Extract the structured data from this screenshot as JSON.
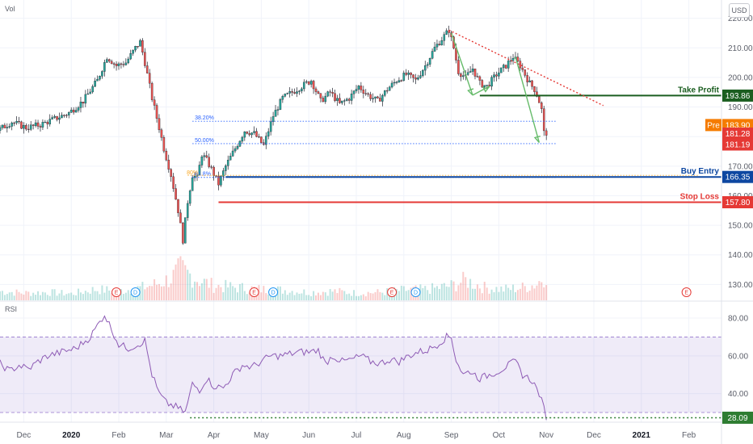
{
  "header": {
    "volume_label": "Vol",
    "currency": "USD"
  },
  "rsi_panel": {
    "label": "RSI",
    "upper_band": 70,
    "lower_band": 30,
    "current_value": "28.09",
    "value_color": "#2e7d32"
  },
  "chart_data": [
    {
      "type": "candlestick",
      "y_axis_ticks": [
        "220.00",
        "210.00",
        "200.00",
        "190.00",
        "180.00",
        "170.00",
        "160.00",
        "150.00",
        "140.00",
        "130.00"
      ],
      "ylim": [
        126,
        221
      ],
      "x_axis_labels": [
        {
          "label": "Dec",
          "t": 0.5,
          "bold": false
        },
        {
          "label": "2020",
          "t": 1.5,
          "bold": true
        },
        {
          "label": "Feb",
          "t": 2.5,
          "bold": false
        },
        {
          "label": "Mar",
          "t": 3.5,
          "bold": false
        },
        {
          "label": "Apr",
          "t": 4.5,
          "bold": false
        },
        {
          "label": "May",
          "t": 5.5,
          "bold": false
        },
        {
          "label": "Jun",
          "t": 6.5,
          "bold": false
        },
        {
          "label": "Jul",
          "t": 7.5,
          "bold": false
        },
        {
          "label": "Aug",
          "t": 8.5,
          "bold": false
        },
        {
          "label": "Sep",
          "t": 9.5,
          "bold": false
        },
        {
          "label": "Oct",
          "t": 10.5,
          "bold": false
        },
        {
          "label": "Nov",
          "t": 11.5,
          "bold": false
        },
        {
          "label": "Dec",
          "t": 12.5,
          "bold": false
        },
        {
          "label": "2021",
          "t": 13.5,
          "bold": true
        },
        {
          "label": "Feb",
          "t": 14.5,
          "bold": false
        }
      ],
      "price_path": [
        [
          0.0,
          182
        ],
        [
          0.3,
          185
        ],
        [
          0.6,
          183
        ],
        [
          0.9,
          184
        ],
        [
          1.2,
          186
        ],
        [
          1.5,
          188
        ],
        [
          1.8,
          192
        ],
        [
          2.1,
          199
        ],
        [
          2.3,
          207
        ],
        [
          2.5,
          204
        ],
        [
          2.7,
          205
        ],
        [
          2.9,
          210
        ],
        [
          3.0,
          212
        ],
        [
          3.1,
          205
        ],
        [
          3.25,
          193
        ],
        [
          3.4,
          183
        ],
        [
          3.5,
          176
        ],
        [
          3.65,
          167
        ],
        [
          3.8,
          155
        ],
        [
          3.9,
          145
        ],
        [
          4.0,
          158
        ],
        [
          4.1,
          167
        ],
        [
          4.2,
          166
        ],
        [
          4.3,
          174
        ],
        [
          4.4,
          172
        ],
        [
          4.5,
          169
        ],
        [
          4.65,
          164
        ],
        [
          4.8,
          170
        ],
        [
          5.0,
          176
        ],
        [
          5.2,
          182
        ],
        [
          5.4,
          181
        ],
        [
          5.6,
          177
        ],
        [
          5.8,
          187
        ],
        [
          6.0,
          193
        ],
        [
          6.2,
          195
        ],
        [
          6.4,
          197
        ],
        [
          6.6,
          199
        ],
        [
          6.8,
          192
        ],
        [
          7.0,
          195
        ],
        [
          7.2,
          191
        ],
        [
          7.4,
          193
        ],
        [
          7.6,
          197
        ],
        [
          7.8,
          194
        ],
        [
          8.0,
          192
        ],
        [
          8.2,
          196
        ],
        [
          8.4,
          199
        ],
        [
          8.6,
          201
        ],
        [
          8.8,
          199
        ],
        [
          9.0,
          204
        ],
        [
          9.2,
          210
        ],
        [
          9.4,
          214
        ],
        [
          9.5,
          216
        ],
        [
          9.6,
          210
        ],
        [
          9.7,
          202
        ],
        [
          9.85,
          200
        ],
        [
          10.0,
          203
        ],
        [
          10.15,
          198
        ],
        [
          10.3,
          197
        ],
        [
          10.5,
          201
        ],
        [
          10.7,
          204
        ],
        [
          10.85,
          207
        ],
        [
          11.0,
          204
        ],
        [
          11.1,
          201
        ],
        [
          11.2,
          198
        ],
        [
          11.3,
          196
        ],
        [
          11.38,
          193
        ],
        [
          11.45,
          189
        ],
        [
          11.5,
          181.3
        ]
      ],
      "volume": [
        [
          0.0,
          0.25
        ],
        [
          0.5,
          0.2
        ],
        [
          1.0,
          0.22
        ],
        [
          1.5,
          0.18
        ],
        [
          2.0,
          0.3
        ],
        [
          2.5,
          0.26
        ],
        [
          3.0,
          0.35
        ],
        [
          3.3,
          0.45
        ],
        [
          3.6,
          0.6
        ],
        [
          3.8,
          0.85
        ],
        [
          4.0,
          0.7
        ],
        [
          4.2,
          0.55
        ],
        [
          4.5,
          0.4
        ],
        [
          5.0,
          0.35
        ],
        [
          5.5,
          0.3
        ],
        [
          6.0,
          0.28
        ],
        [
          6.5,
          0.22
        ],
        [
          7.0,
          0.25
        ],
        [
          7.5,
          0.2
        ],
        [
          8.0,
          0.22
        ],
        [
          8.5,
          0.28
        ],
        [
          9.0,
          0.3
        ],
        [
          9.5,
          0.4
        ],
        [
          9.8,
          0.55
        ],
        [
          10.2,
          0.35
        ],
        [
          10.6,
          0.3
        ],
        [
          11.0,
          0.35
        ],
        [
          11.3,
          0.45
        ],
        [
          11.5,
          0.75
        ]
      ],
      "events": [
        {
          "label": "E",
          "t": 2.45,
          "color": "#e53935"
        },
        {
          "label": "D",
          "t": 2.85,
          "color": "#2196f3"
        },
        {
          "label": "E",
          "t": 5.35,
          "color": "#e53935"
        },
        {
          "label": "D",
          "t": 5.75,
          "color": "#2196f3"
        },
        {
          "label": "E",
          "t": 8.25,
          "color": "#e53935"
        },
        {
          "label": "D",
          "t": 8.75,
          "color": "#2196f3"
        },
        {
          "label": "E",
          "t": 14.45,
          "color": "#e53935"
        }
      ],
      "fib_levels": [
        {
          "label": "38.20%",
          "value": 185.2
        },
        {
          "label": "50.00%",
          "value": 177.6
        },
        {
          "label": "61.8%",
          "value": 166.2
        }
      ],
      "orange_level": {
        "label": "80%",
        "value": 166.9
      },
      "levels": [
        {
          "label": "Take Profit",
          "value": 193.86,
          "badge": "193.86",
          "color": "#1b5e20",
          "t_start": 10.1
        },
        {
          "label": "Buy Entry",
          "value": 166.35,
          "badge": "166.35",
          "color": "#0d47a1",
          "t_start": 4.75
        },
        {
          "label": "Stop Loss",
          "value": 157.8,
          "badge": "157.80",
          "color": "#e53935",
          "t_start": 4.6
        }
      ],
      "price_badges": [
        {
          "label": "183.90",
          "value": 183.9,
          "color": "#f57c00",
          "prefix": "Pre"
        },
        {
          "label": "181.28",
          "value": 181.28,
          "color": "#e53935",
          "prefix": ""
        },
        {
          "label": "181.19",
          "value": 181.19,
          "color": "#e53935",
          "prefix": ""
        }
      ],
      "trendline": {
        "t1": 9.45,
        "v1": 216,
        "t2": 12.7,
        "v2": 190.5,
        "color": "#e53935"
      },
      "arrows": [
        [
          [
            9.5,
            215
          ],
          [
            9.95,
            194
          ]
        ],
        [
          [
            9.95,
            194
          ],
          [
            10.3,
            197
          ]
        ],
        [
          [
            10.85,
            207
          ],
          [
            11.35,
            178
          ]
        ]
      ]
    },
    {
      "type": "line",
      "name": "RSI",
      "y_axis_ticks": [
        "80.00",
        "60.00",
        "40.00"
      ],
      "ylim": [
        27,
        86
      ],
      "bands": [
        30,
        70
      ],
      "values": [
        [
          0.0,
          56
        ],
        [
          0.2,
          52
        ],
        [
          0.4,
          55
        ],
        [
          0.6,
          53
        ],
        [
          0.8,
          57
        ],
        [
          1.0,
          60
        ],
        [
          1.3,
          62
        ],
        [
          1.6,
          64
        ],
        [
          1.9,
          70
        ],
        [
          2.1,
          78
        ],
        [
          2.2,
          82
        ],
        [
          2.35,
          74
        ],
        [
          2.5,
          66
        ],
        [
          2.7,
          64
        ],
        [
          2.9,
          66
        ],
        [
          3.05,
          68
        ],
        [
          3.2,
          50
        ],
        [
          3.35,
          40
        ],
        [
          3.5,
          35
        ],
        [
          3.7,
          33
        ],
        [
          3.9,
          30
        ],
        [
          4.05,
          45
        ],
        [
          4.2,
          42
        ],
        [
          4.35,
          48
        ],
        [
          4.5,
          44
        ],
        [
          4.7,
          43
        ],
        [
          4.9,
          50
        ],
        [
          5.1,
          55
        ],
        [
          5.3,
          54
        ],
        [
          5.5,
          57
        ],
        [
          5.7,
          60
        ],
        [
          5.9,
          60
        ],
        [
          6.1,
          61
        ],
        [
          6.3,
          62
        ],
        [
          6.5,
          62
        ],
        [
          6.7,
          63
        ],
        [
          6.85,
          56
        ],
        [
          7.0,
          60
        ],
        [
          7.2,
          57
        ],
        [
          7.4,
          58
        ],
        [
          7.6,
          60
        ],
        [
          7.8,
          57
        ],
        [
          8.0,
          56
        ],
        [
          8.2,
          58
        ],
        [
          8.4,
          57
        ],
        [
          8.6,
          60
        ],
        [
          8.8,
          62
        ],
        [
          9.0,
          63
        ],
        [
          9.2,
          66
        ],
        [
          9.4,
          70
        ],
        [
          9.5,
          70
        ],
        [
          9.6,
          58
        ],
        [
          9.75,
          50
        ],
        [
          9.9,
          52
        ],
        [
          10.1,
          48
        ],
        [
          10.3,
          50
        ],
        [
          10.5,
          52
        ],
        [
          10.7,
          55
        ],
        [
          10.85,
          57
        ],
        [
          11.0,
          50
        ],
        [
          11.2,
          47
        ],
        [
          11.35,
          40
        ],
        [
          11.5,
          28
        ]
      ]
    }
  ]
}
